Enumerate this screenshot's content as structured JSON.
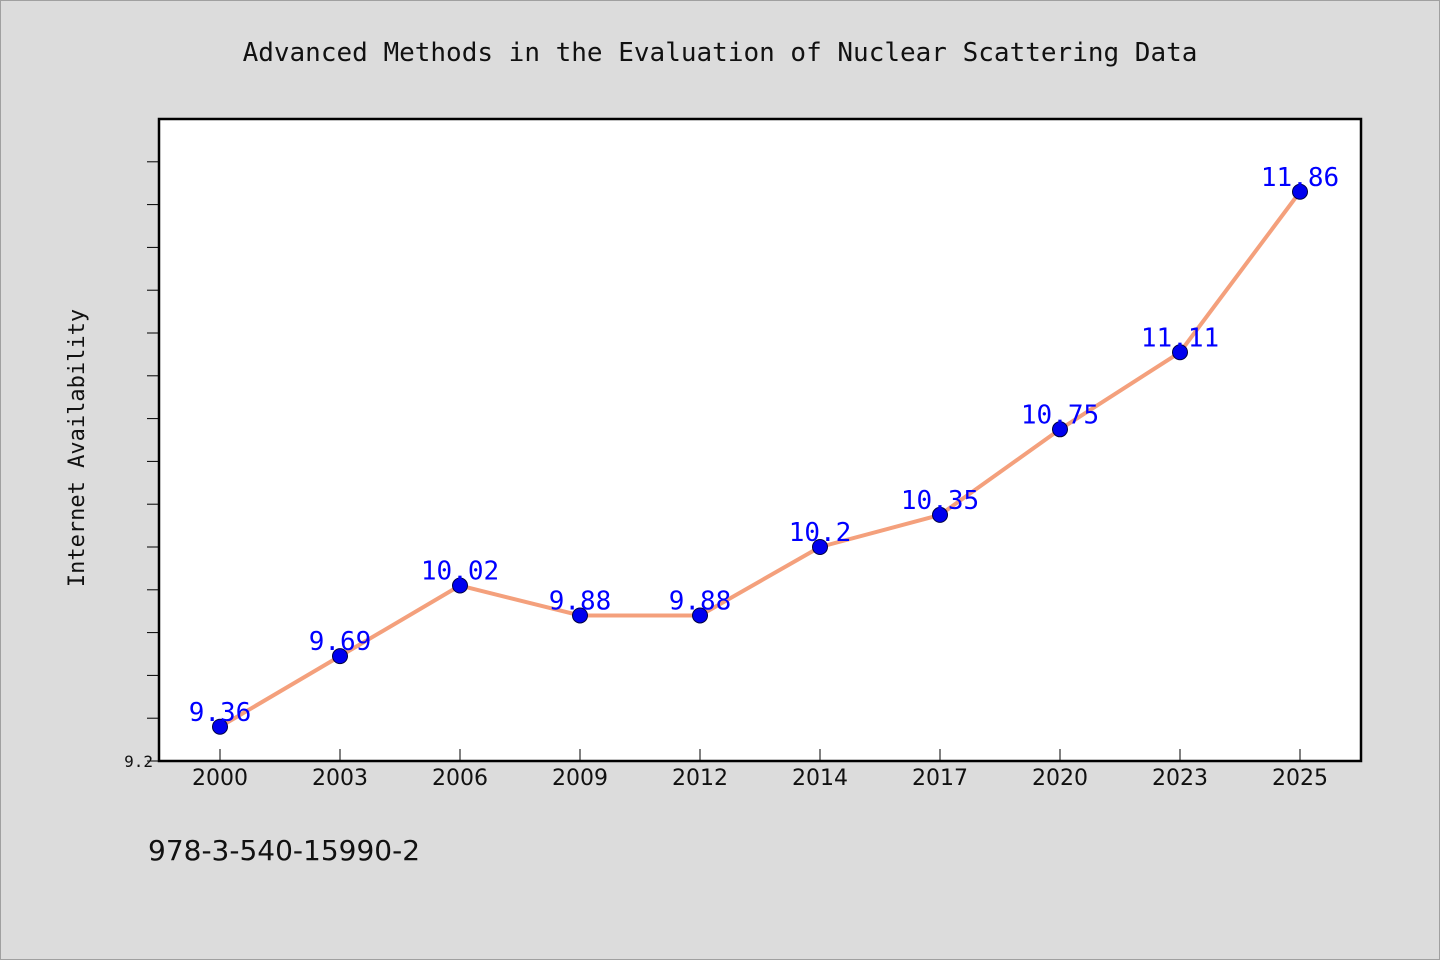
{
  "chart_data": {
    "type": "line",
    "title": "Advanced Methods in the Evaluation of Nuclear Scattering Data",
    "xlabel": "",
    "ylabel": "Internet Availability",
    "categories": [
      "2000",
      "2003",
      "2006",
      "2009",
      "2012",
      "2014",
      "2017",
      "2020",
      "2023",
      "2025"
    ],
    "series": [
      {
        "values": [
          9.36,
          9.69,
          10.02,
          9.88,
          9.88,
          10.2,
          10.35,
          10.75,
          11.11,
          11.86
        ],
        "labels": [
          "9.36",
          "9.69",
          "10.02",
          "9.88",
          "9.88",
          "10.2",
          "10.35",
          "10.75",
          "11.11",
          "11.86"
        ]
      }
    ],
    "ylim": [
      9.2,
      12.2
    ],
    "y_tick_labels": [
      "9.2"
    ],
    "grid": false,
    "colors": {
      "line": "#f4a07c",
      "marker": "#0000ee",
      "data_label": "#0000ff",
      "axes": "#000000",
      "plot_background": "#ffffff",
      "figure_background": "#dcdcdc"
    }
  },
  "footer": {
    "isbn": "978-3-540-15990-2"
  }
}
